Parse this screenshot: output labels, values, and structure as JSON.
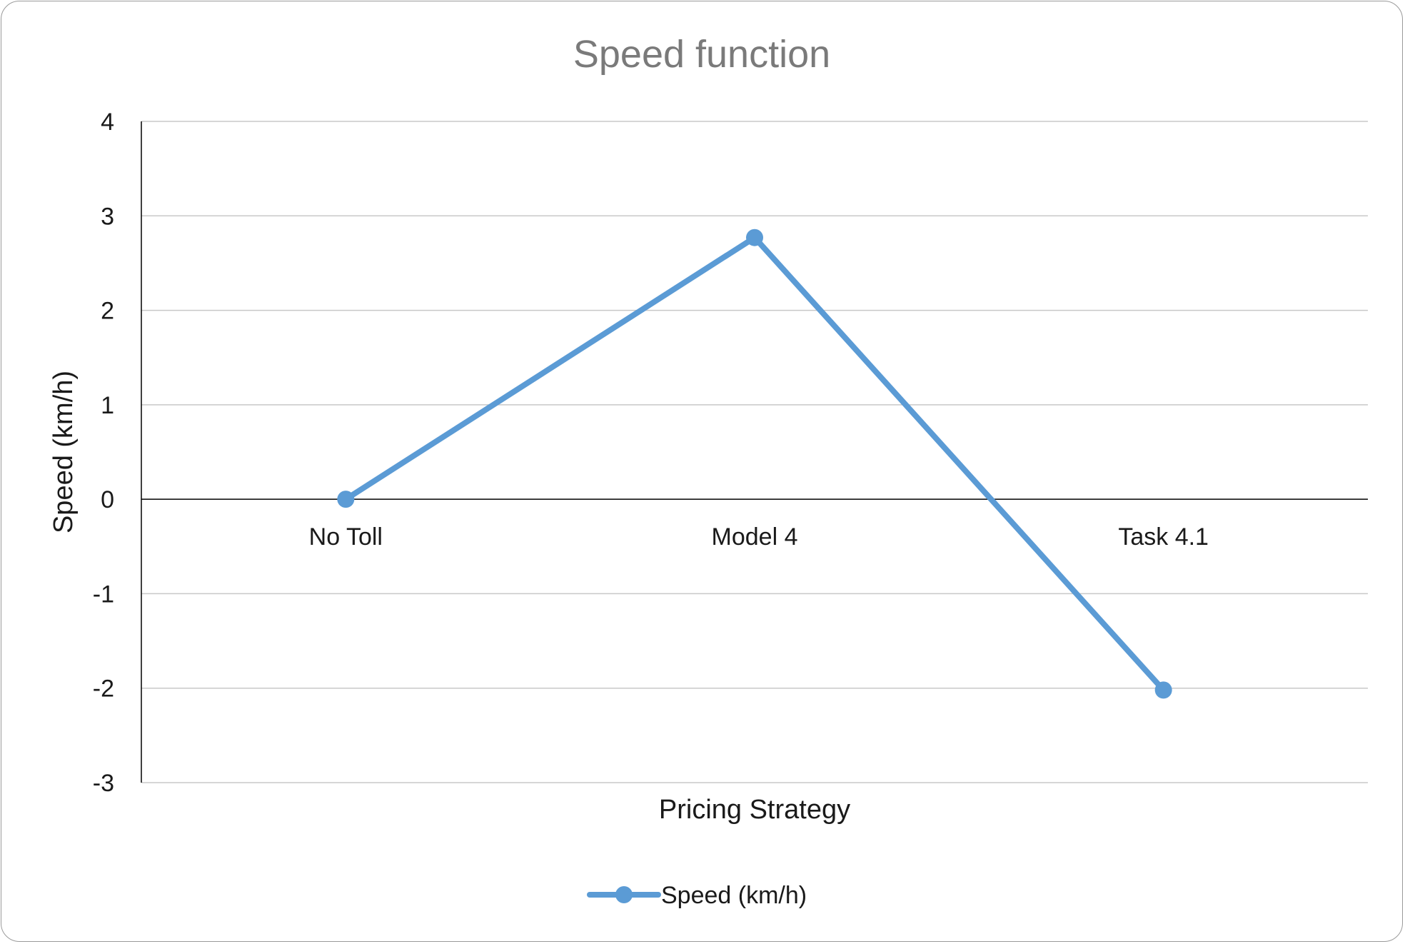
{
  "chart_data": {
    "type": "line",
    "title": "Speed function",
    "xlabel": "Pricing Strategy",
    "ylabel": "Speed (km/h)",
    "categories": [
      "No Toll",
      "Model 4",
      "Task 4.1"
    ],
    "series": [
      {
        "name": "Speed (km/h)",
        "values": [
          0,
          2.77,
          -2.02
        ],
        "color": "#5b9bd5"
      }
    ],
    "ylim": [
      -3,
      4
    ],
    "yticks": [
      "4",
      "3",
      "2",
      "1",
      "0",
      "-1",
      "-2",
      "-3"
    ],
    "grid": true,
    "legend": "bottom-center"
  }
}
